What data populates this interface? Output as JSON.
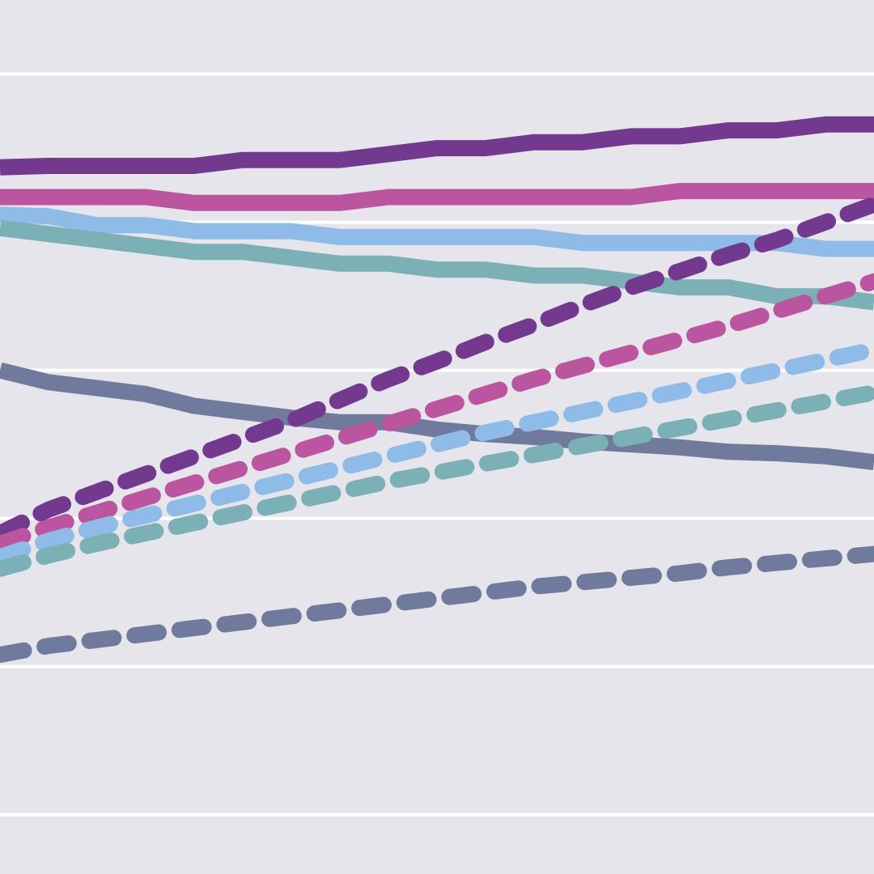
{
  "background_color": "#e6e5ec",
  "grid_color": "#ffffff",
  "chart_data": {
    "type": "line",
    "title": "",
    "xlabel": "",
    "ylabel": "",
    "grid": true,
    "legend": "none",
    "xlim": [
      0,
      18
    ],
    "ylim": [
      -0.4,
      5.5
    ],
    "y_gridlines": [
      0,
      1,
      2,
      3,
      4,
      5
    ],
    "x": [
      0,
      1,
      2,
      3,
      4,
      5,
      6,
      7,
      8,
      9,
      10,
      11,
      12,
      13,
      14,
      15,
      16,
      17,
      18
    ],
    "series": [
      {
        "color": "#72398f",
        "style": "solid",
        "values": [
          4.37,
          4.38,
          4.38,
          4.38,
          4.38,
          4.42,
          4.42,
          4.42,
          4.46,
          4.5,
          4.5,
          4.54,
          4.54,
          4.58,
          4.58,
          4.62,
          4.62,
          4.66,
          4.66
        ]
      },
      {
        "color": "#bb55a0",
        "style": "solid",
        "values": [
          4.17,
          4.17,
          4.17,
          4.17,
          4.13,
          4.13,
          4.13,
          4.13,
          4.17,
          4.17,
          4.17,
          4.17,
          4.17,
          4.17,
          4.21,
          4.21,
          4.21,
          4.21,
          4.21
        ]
      },
      {
        "color": "#8fbbe8",
        "style": "solid",
        "values": [
          4.05,
          4.04,
          3.98,
          3.98,
          3.94,
          3.94,
          3.94,
          3.9,
          3.9,
          3.9,
          3.9,
          3.9,
          3.86,
          3.86,
          3.86,
          3.86,
          3.86,
          3.82,
          3.82
        ]
      },
      {
        "color": "#7ab0b6",
        "style": "solid",
        "values": [
          3.96,
          3.92,
          3.88,
          3.84,
          3.8,
          3.8,
          3.76,
          3.72,
          3.72,
          3.68,
          3.68,
          3.64,
          3.64,
          3.6,
          3.56,
          3.56,
          3.5,
          3.5,
          3.46
        ]
      },
      {
        "color": "#6f7a9c",
        "style": "solid",
        "values": [
          3.0,
          2.92,
          2.88,
          2.84,
          2.76,
          2.72,
          2.68,
          2.65,
          2.65,
          2.6,
          2.57,
          2.55,
          2.52,
          2.5,
          2.48,
          2.45,
          2.44,
          2.42,
          2.38
        ]
      },
      {
        "color": "#72398f",
        "style": "dashed",
        "values": [
          1.9,
          2.06,
          2.18,
          2.3,
          2.42,
          2.54,
          2.66,
          2.8,
          2.94,
          3.06,
          3.19,
          3.31,
          3.44,
          3.56,
          3.67,
          3.78,
          3.88,
          4.0,
          4.12
        ]
      },
      {
        "color": "#bb55a0",
        "style": "dashed",
        "values": [
          1.83,
          1.94,
          2.04,
          2.14,
          2.24,
          2.34,
          2.44,
          2.54,
          2.64,
          2.74,
          2.84,
          2.94,
          3.03,
          3.12,
          3.21,
          3.3,
          3.4,
          3.5,
          3.6
        ]
      },
      {
        "color": "#8fbbe8",
        "style": "dashed",
        "values": [
          1.74,
          1.85,
          1.94,
          2.02,
          2.1,
          2.18,
          2.26,
          2.34,
          2.42,
          2.5,
          2.58,
          2.65,
          2.72,
          2.79,
          2.86,
          2.93,
          3.0,
          3.07,
          3.14
        ]
      },
      {
        "color": "#7ab0b6",
        "style": "dashed",
        "values": [
          1.66,
          1.75,
          1.83,
          1.9,
          1.97,
          2.04,
          2.11,
          2.18,
          2.25,
          2.31,
          2.37,
          2.43,
          2.49,
          2.55,
          2.61,
          2.67,
          2.73,
          2.79,
          2.85
        ]
      },
      {
        "color": "#6f7a9c",
        "style": "dashed",
        "values": [
          1.08,
          1.14,
          1.18,
          1.22,
          1.26,
          1.3,
          1.34,
          1.38,
          1.42,
          1.46,
          1.5,
          1.54,
          1.57,
          1.6,
          1.63,
          1.67,
          1.7,
          1.73,
          1.76
        ]
      }
    ]
  }
}
